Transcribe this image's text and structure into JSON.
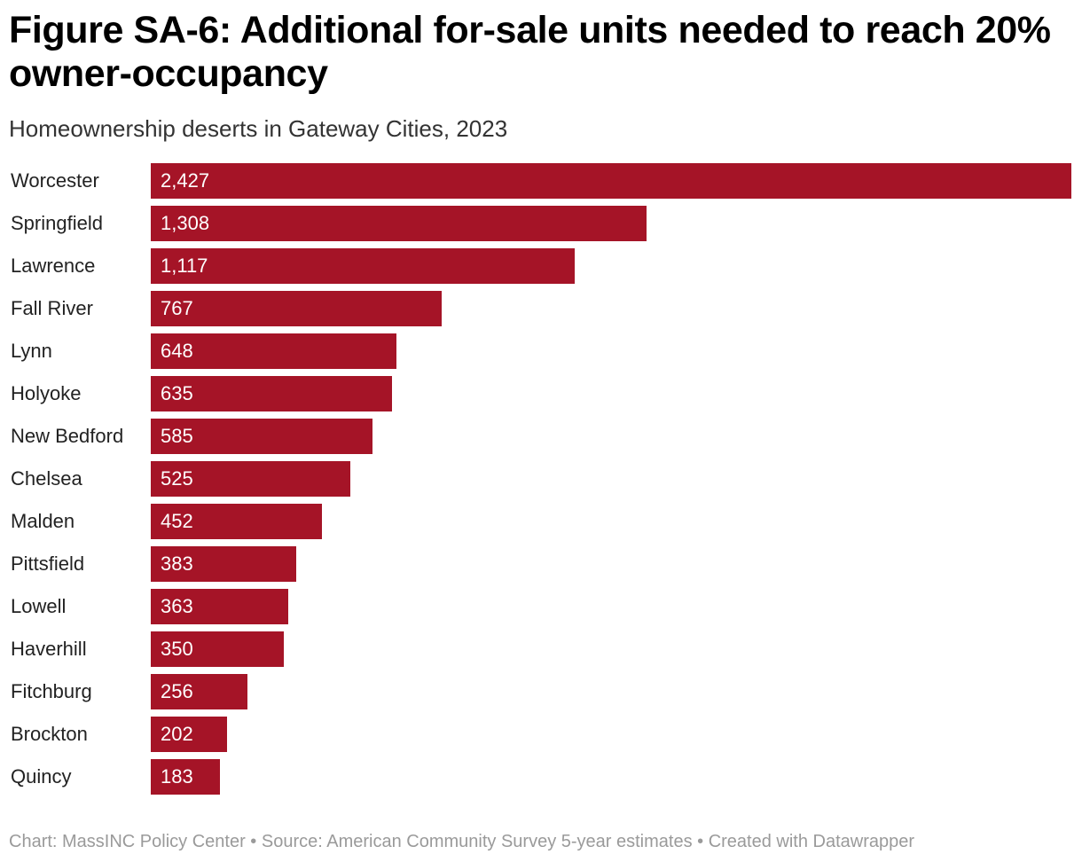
{
  "chart_data": {
    "type": "bar",
    "orientation": "horizontal",
    "title": "Figure SA-6: Additional for-sale units needed to reach 20% owner-occupancy",
    "subtitle": "Homeownership deserts in Gateway Cities, 2023",
    "categories": [
      "Worcester",
      "Springfield",
      "Lawrence",
      "Fall River",
      "Lynn",
      "Holyoke",
      "New Bedford",
      "Chelsea",
      "Malden",
      "Pittsfield",
      "Lowell",
      "Haverhill",
      "Fitchburg",
      "Brockton",
      "Quincy"
    ],
    "values": [
      2427,
      1308,
      1117,
      767,
      648,
      635,
      585,
      525,
      452,
      383,
      363,
      350,
      256,
      202,
      183
    ],
    "value_labels": [
      "2,427",
      "1,308",
      "1,117",
      "767",
      "648",
      "635",
      "585",
      "525",
      "452",
      "383",
      "363",
      "350",
      "256",
      "202",
      "183"
    ],
    "xlim": [
      0,
      2427
    ],
    "xlabel": "",
    "ylabel": "",
    "grid": false,
    "legend": "none",
    "bar_color": "#A51427",
    "footer": "Chart: MassINC Policy Center • Source: American Community Survey 5-year estimates • Created with Datawrapper"
  }
}
